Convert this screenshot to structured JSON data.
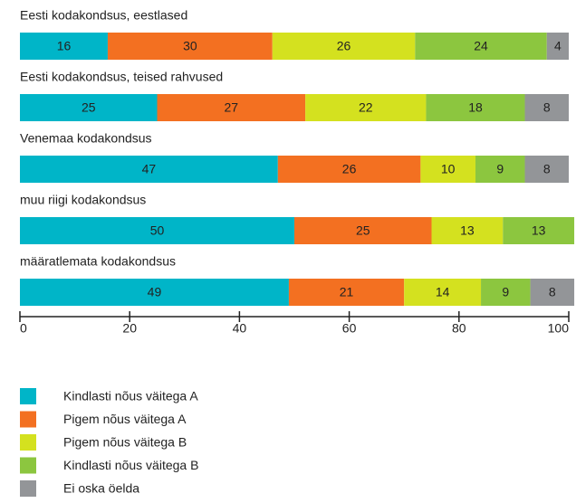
{
  "chart_data": {
    "type": "stacked-bar-horizontal",
    "categories": [
      "Eesti kodakondsus, eestlased",
      "Eesti kodakondsus, teised rahvused",
      "Venemaa kodakondsus",
      "muu riigi kodakondsus",
      "määratlemata kodakondsus"
    ],
    "series": [
      {
        "name": "Kindlasti nõus väitega A",
        "color": "#00b5c8",
        "values": [
          16,
          25,
          47,
          50,
          49
        ]
      },
      {
        "name": "Pigem nõus väitega A",
        "color": "#f37021",
        "values": [
          30,
          27,
          26,
          25,
          21
        ]
      },
      {
        "name": "Pigem nõus väitega B",
        "color": "#d4e11f",
        "values": [
          26,
          22,
          10,
          13,
          14
        ]
      },
      {
        "name": "Kindlasti nõus väitega B",
        "color": "#8cc63f",
        "values": [
          24,
          18,
          9,
          13,
          9
        ]
      },
      {
        "name": "Ei oska öelda",
        "color": "#939598",
        "values": [
          4,
          8,
          8,
          null,
          8
        ]
      }
    ],
    "xlim": [
      0,
      100
    ],
    "xticks": [
      0,
      20,
      40,
      60,
      80,
      100
    ],
    "legend": "bottom"
  }
}
